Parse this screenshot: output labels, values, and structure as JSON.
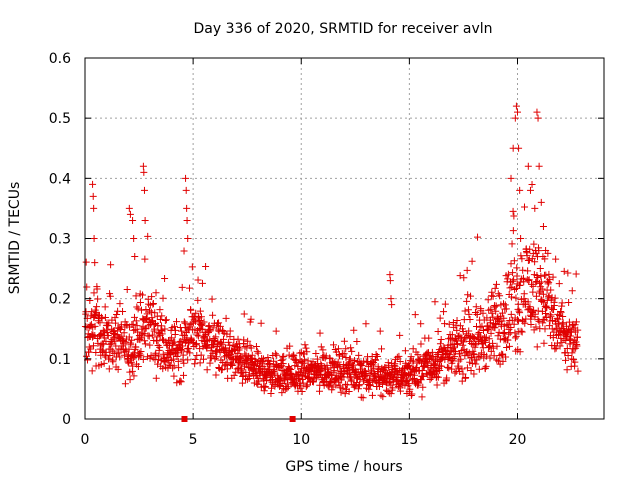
{
  "chart_data": {
    "type": "scatter",
    "title": "Day 336 of 2020, SRMTID for receiver avln",
    "xlabel": "GPS time / hours",
    "ylabel": "SRMTID / TECUs",
    "xlim": [
      0,
      24
    ],
    "ylim": [
      0,
      0.6
    ],
    "xticks": [
      0,
      5,
      10,
      15,
      20
    ],
    "xtick_labels": [
      "0",
      "5",
      "10",
      "15",
      "20"
    ],
    "yticks": [
      0,
      0.1,
      0.2,
      0.3,
      0.4,
      0.5,
      0.6
    ],
    "ytick_labels": [
      "0",
      "0.1",
      "0.2",
      "0.3",
      "0.4",
      "0.5",
      "0.6"
    ],
    "grid": true,
    "marker": "+",
    "color": "#e00000",
    "baseline_markers_x": [
      4.6,
      9.6
    ],
    "series": [
      {
        "name": "SRMTID",
        "profile_hours": [
          0,
          0.3,
          0.6,
          1.0,
          1.5,
          2.0,
          2.5,
          3.0,
          3.5,
          4.0,
          4.5,
          5.0,
          5.5,
          6.0,
          7.0,
          8.0,
          9.0,
          10.0,
          11.0,
          12.0,
          13.0,
          14.0,
          15.0,
          16.0,
          17.0,
          18.0,
          19.0,
          19.5,
          20.0,
          20.5,
          21.0,
          21.5,
          22.0,
          22.8
        ],
        "profile_typical": [
          0.14,
          0.15,
          0.15,
          0.14,
          0.13,
          0.12,
          0.14,
          0.16,
          0.13,
          0.11,
          0.12,
          0.15,
          0.14,
          0.12,
          0.1,
          0.08,
          0.075,
          0.075,
          0.08,
          0.08,
          0.075,
          0.07,
          0.075,
          0.09,
          0.11,
          0.13,
          0.15,
          0.17,
          0.2,
          0.22,
          0.22,
          0.18,
          0.14,
          0.12
        ],
        "profile_spread": [
          0.05,
          0.06,
          0.06,
          0.05,
          0.05,
          0.05,
          0.05,
          0.06,
          0.05,
          0.04,
          0.05,
          0.05,
          0.05,
          0.04,
          0.035,
          0.03,
          0.03,
          0.03,
          0.03,
          0.03,
          0.03,
          0.03,
          0.03,
          0.035,
          0.04,
          0.05,
          0.06,
          0.07,
          0.08,
          0.09,
          0.08,
          0.07,
          0.05,
          0.04
        ],
        "spikes": [
          {
            "x": 0.35,
            "y": 0.39
          },
          {
            "x": 0.38,
            "y": 0.37
          },
          {
            "x": 0.4,
            "y": 0.35
          },
          {
            "x": 0.42,
            "y": 0.3
          },
          {
            "x": 0.45,
            "y": 0.26
          },
          {
            "x": 2.05,
            "y": 0.35
          },
          {
            "x": 2.1,
            "y": 0.34
          },
          {
            "x": 2.2,
            "y": 0.33
          },
          {
            "x": 2.25,
            "y": 0.3
          },
          {
            "x": 2.3,
            "y": 0.27
          },
          {
            "x": 2.7,
            "y": 0.42
          },
          {
            "x": 2.72,
            "y": 0.41
          },
          {
            "x": 2.75,
            "y": 0.38
          },
          {
            "x": 2.78,
            "y": 0.33
          },
          {
            "x": 4.65,
            "y": 0.4
          },
          {
            "x": 4.68,
            "y": 0.38
          },
          {
            "x": 4.7,
            "y": 0.35
          },
          {
            "x": 4.72,
            "y": 0.33
          },
          {
            "x": 4.75,
            "y": 0.3
          },
          {
            "x": 14.1,
            "y": 0.24
          },
          {
            "x": 14.12,
            "y": 0.23
          },
          {
            "x": 14.15,
            "y": 0.2
          },
          {
            "x": 14.18,
            "y": 0.19
          },
          {
            "x": 19.7,
            "y": 0.4
          },
          {
            "x": 19.8,
            "y": 0.45
          },
          {
            "x": 19.9,
            "y": 0.5
          },
          {
            "x": 19.95,
            "y": 0.52
          },
          {
            "x": 20.0,
            "y": 0.51
          },
          {
            "x": 20.05,
            "y": 0.45
          },
          {
            "x": 20.1,
            "y": 0.38
          },
          {
            "x": 20.5,
            "y": 0.42
          },
          {
            "x": 20.6,
            "y": 0.38
          },
          {
            "x": 20.8,
            "y": 0.35
          },
          {
            "x": 20.9,
            "y": 0.51
          },
          {
            "x": 20.95,
            "y": 0.5
          },
          {
            "x": 21.0,
            "y": 0.42
          },
          {
            "x": 21.1,
            "y": 0.36
          },
          {
            "x": 21.2,
            "y": 0.32
          },
          {
            "x": 21.3,
            "y": 0.28
          }
        ]
      }
    ]
  }
}
